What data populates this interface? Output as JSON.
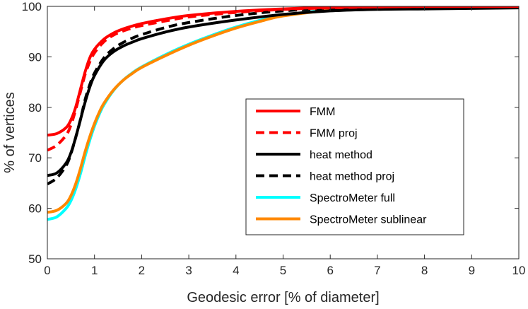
{
  "chart_data": {
    "type": "line",
    "xlabel": "Geodesic error [% of diameter]",
    "ylabel": "% of vertices",
    "xlim": [
      0,
      10
    ],
    "ylim": [
      50,
      100
    ],
    "xticks": [
      0,
      1,
      2,
      3,
      4,
      5,
      6,
      7,
      8,
      9,
      10
    ],
    "yticks": [
      50,
      60,
      70,
      80,
      90,
      100
    ],
    "grid": false,
    "legend_position": "lower-right",
    "series": [
      {
        "name": "FMM",
        "color": "#ff0000",
        "dash": "solid",
        "x": [
          0,
          0.2,
          0.4,
          0.5,
          0.6,
          0.7,
          0.8,
          0.9,
          1.0,
          1.2,
          1.4,
          1.6,
          1.8,
          2.0,
          2.5,
          3,
          4,
          5,
          6,
          7,
          8,
          9,
          10
        ],
        "y": [
          74.5,
          74.8,
          76,
          77.5,
          80,
          83.5,
          87,
          89.8,
          91.5,
          93.5,
          94.7,
          95.5,
          96.1,
          96.6,
          97.5,
          98.2,
          99.0,
          99.5,
          99.8,
          99.9,
          100,
          100,
          100
        ]
      },
      {
        "name": "FMM proj",
        "color": "#ff0000",
        "dash": "dashed",
        "x": [
          0,
          0.2,
          0.4,
          0.5,
          0.6,
          0.7,
          0.8,
          0.9,
          1.0,
          1.2,
          1.4,
          1.6,
          1.8,
          2.0,
          2.5,
          3,
          4,
          5,
          6,
          7,
          8,
          9,
          10
        ],
        "y": [
          71.5,
          72.5,
          74.5,
          76.5,
          79.5,
          83,
          86.5,
          89,
          90.8,
          93,
          94.3,
          95.1,
          95.7,
          96.2,
          97.1,
          97.9,
          98.8,
          99.4,
          99.7,
          99.9,
          100,
          100,
          100
        ]
      },
      {
        "name": "heat method",
        "color": "#000000",
        "dash": "solid",
        "x": [
          0,
          0.2,
          0.4,
          0.5,
          0.6,
          0.7,
          0.8,
          0.9,
          1.0,
          1.2,
          1.4,
          1.6,
          1.8,
          2.0,
          2.5,
          3,
          4,
          5,
          6,
          7,
          8,
          9,
          10
        ],
        "y": [
          66.5,
          67,
          69,
          71,
          74,
          77.5,
          81,
          84,
          86.3,
          89.3,
          91,
          92.1,
          92.9,
          93.6,
          94.9,
          95.9,
          97.3,
          98.4,
          99.1,
          99.4,
          99.5,
          99.6,
          99.7
        ]
      },
      {
        "name": "heat method proj",
        "color": "#000000",
        "dash": "dashed",
        "x": [
          0,
          0.2,
          0.4,
          0.5,
          0.6,
          0.7,
          0.8,
          0.9,
          1.0,
          1.2,
          1.4,
          1.6,
          1.8,
          2.0,
          2.5,
          3,
          4,
          5,
          6,
          7,
          8,
          9,
          10
        ],
        "y": [
          64.8,
          66,
          68.5,
          70.8,
          74,
          77.5,
          81.5,
          84.5,
          86.8,
          89.8,
          91.6,
          92.8,
          93.7,
          94.4,
          95.8,
          96.8,
          98.2,
          99.1,
          99.6,
          99.8,
          99.9,
          100,
          100
        ]
      },
      {
        "name": "SpectroMeter full",
        "color": "#00ffff",
        "dash": "solid",
        "x": [
          0,
          0.2,
          0.4,
          0.5,
          0.6,
          0.7,
          0.8,
          0.9,
          1.0,
          1.1,
          1.2,
          1.4,
          1.6,
          1.8,
          2.0,
          2.5,
          3,
          3.5,
          4,
          4.5,
          5,
          6,
          7,
          8,
          9,
          10
        ],
        "y": [
          57.8,
          58.3,
          60,
          61.5,
          63.8,
          66.8,
          70.3,
          73.5,
          76.3,
          78.6,
          80.5,
          83.3,
          85.3,
          86.8,
          88,
          90.4,
          92.5,
          94.3,
          95.9,
          97.2,
          98.2,
          99.3,
          99.7,
          99.9,
          100,
          100
        ]
      },
      {
        "name": "SpectroMeter sublinear",
        "color": "#ff8800",
        "dash": "solid",
        "x": [
          0,
          0.2,
          0.4,
          0.5,
          0.6,
          0.7,
          0.8,
          0.9,
          1.0,
          1.1,
          1.2,
          1.4,
          1.6,
          1.8,
          2.0,
          2.5,
          3,
          3.5,
          4,
          4.5,
          5,
          6,
          7,
          8,
          9,
          10
        ],
        "y": [
          59.2,
          59.6,
          61,
          62.5,
          64.8,
          67.8,
          71.2,
          74.2,
          76.8,
          79,
          80.8,
          83.4,
          85.3,
          86.7,
          87.9,
          90.2,
          92.3,
          94.1,
          95.7,
          97,
          98.1,
          99.2,
          99.6,
          99.8,
          99.9,
          100
        ]
      }
    ]
  }
}
